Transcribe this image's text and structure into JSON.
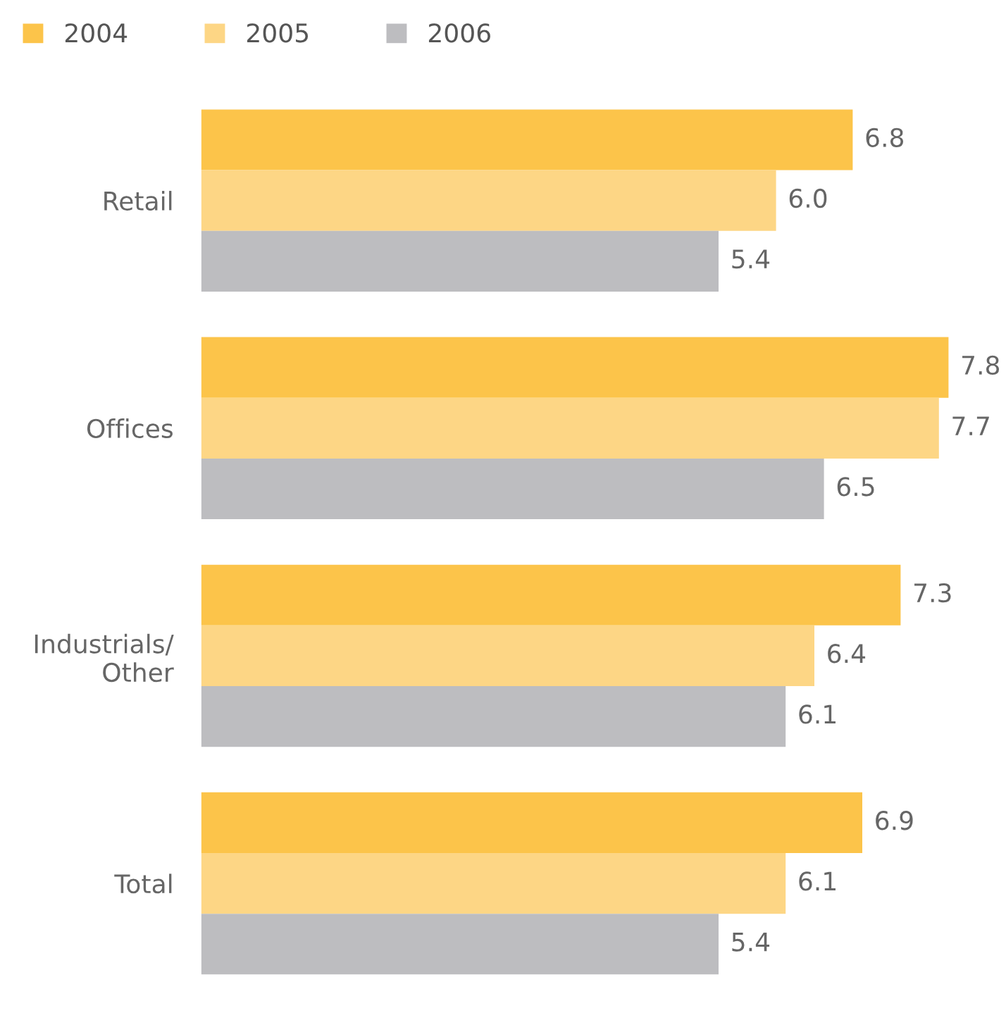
{
  "chart_data": {
    "type": "bar",
    "orientation": "horizontal",
    "categories": [
      "Retail",
      "Offices",
      "Industrials/\nOther",
      "Total"
    ],
    "series": [
      {
        "name": "2004",
        "color": "#fcc44a",
        "values": [
          6.8,
          7.8,
          7.3,
          6.9
        ],
        "value_labels": [
          "6.8",
          "7.8",
          "7.3",
          "6.9"
        ]
      },
      {
        "name": "2005",
        "color": "#fdd685",
        "values": [
          6.0,
          7.7,
          6.4,
          6.1
        ],
        "value_labels": [
          "6.0",
          "7.7",
          "6.4",
          "6.1"
        ]
      },
      {
        "name": "2006",
        "color": "#bdbdc0",
        "values": [
          5.4,
          6.5,
          6.1,
          5.4
        ],
        "value_labels": [
          "5.4",
          "6.5",
          "6.1",
          "5.4"
        ]
      }
    ],
    "legend": "top left",
    "tick_labels": "y",
    "grid": false
  }
}
